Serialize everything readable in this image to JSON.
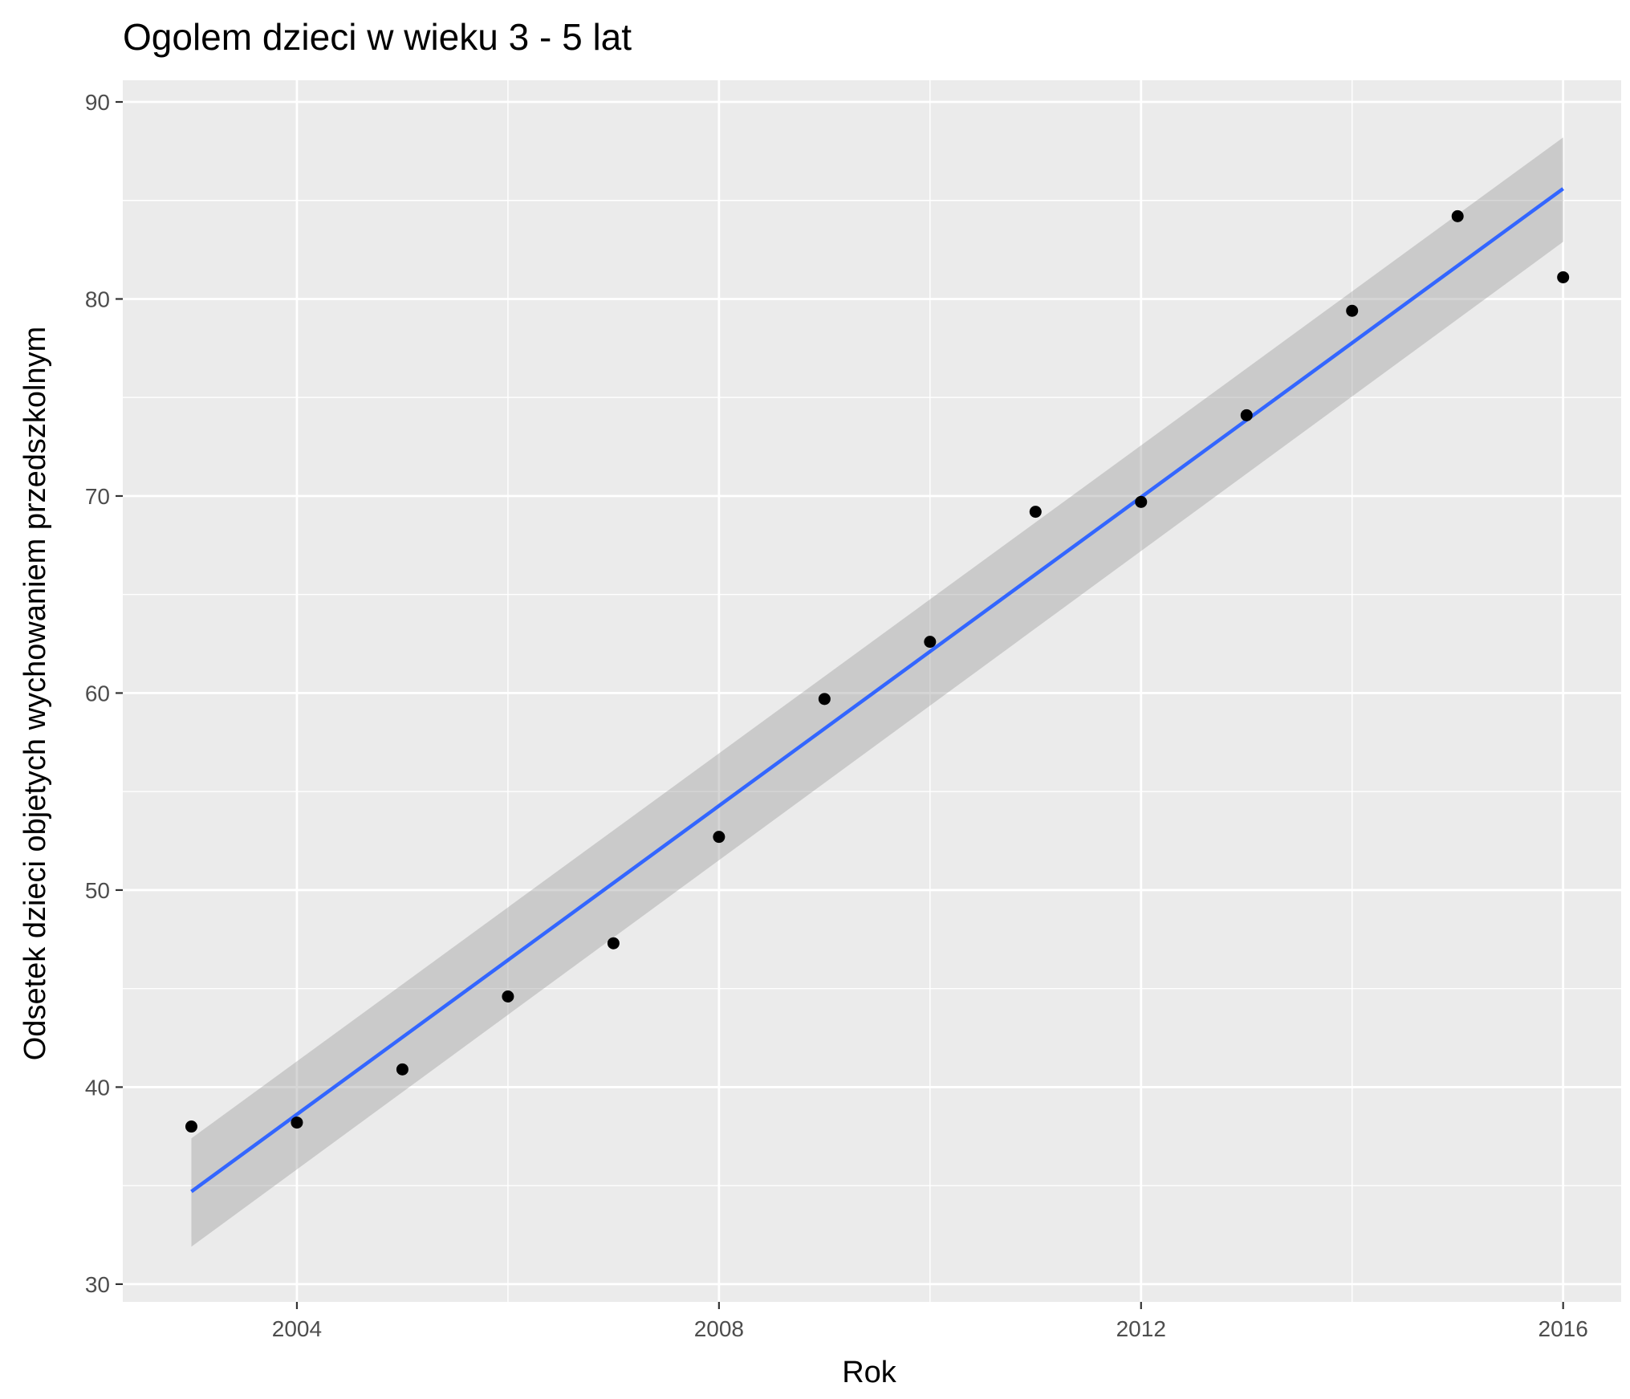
{
  "chart_data": {
    "type": "scatter",
    "title": "Ogolem dzieci w wieku 3 - 5 lat",
    "xlabel": "Rok",
    "ylabel": "Odsetek dzieci objetych wychowaniem przedszkolnym",
    "xlim": [
      2002.35,
      2016.55
    ],
    "ylim": [
      29.1,
      91.1
    ],
    "x_ticks": [
      2004,
      2008,
      2012,
      2016
    ],
    "y_ticks": [
      30,
      40,
      50,
      60,
      70,
      80,
      90
    ],
    "grid": true,
    "series": [
      {
        "x": [
          2003,
          2004,
          2005,
          2006,
          2007,
          2008,
          2009,
          2010,
          2011,
          2012,
          2013,
          2014,
          2015,
          2016
        ],
        "y": [
          38.0,
          38.2,
          40.9,
          44.6,
          47.3,
          52.7,
          59.7,
          62.6,
          69.2,
          69.7,
          74.1,
          79.4,
          84.2,
          81.1
        ]
      }
    ],
    "trend_line": {
      "method": "linear",
      "x": [
        2003,
        2016
      ],
      "y": [
        34.7,
        85.6
      ],
      "ci_lower": [
        31.9,
        82.9
      ],
      "ci_upper": [
        37.4,
        88.2
      ]
    },
    "colors": {
      "panel": "#ebebeb",
      "grid": "#ffffff",
      "points": "#000000",
      "trend_line": "#3366ff",
      "confidence_band": "#999999"
    }
  }
}
